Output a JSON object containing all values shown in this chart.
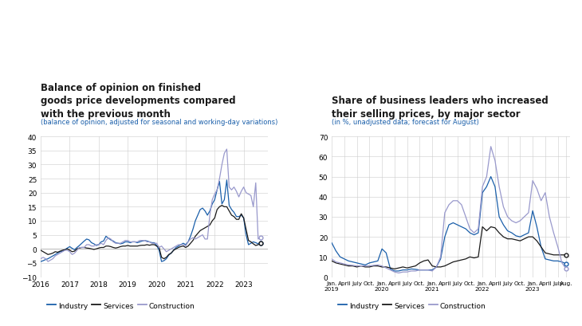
{
  "chart1": {
    "title": "Balance of opinion on finished\ngoods price developments compared\nwith the previous month",
    "subtitle": "(balance of opinion, adjusted for seasonal and working-day variations)",
    "ylim": [
      -10,
      40
    ],
    "yticks": [
      -10,
      -5,
      0,
      5,
      10,
      15,
      20,
      25,
      30,
      35,
      40
    ],
    "xlim_start": 2016.0,
    "xlim_end": 2023.83,
    "xtick_years": [
      2016,
      2017,
      2018,
      2019,
      2020,
      2021,
      2022,
      2023
    ],
    "xtick_labels": [
      "2016",
      "2017",
      "2018",
      "2019",
      "2020",
      "2021",
      "2022",
      "2023"
    ],
    "industry_color": "#1a5faa",
    "services_color": "#1a1a1a",
    "construction_color": "#9999cc",
    "industry_x": [
      2016.0,
      2016.083,
      2016.167,
      2016.25,
      2016.333,
      2016.417,
      2016.5,
      2016.583,
      2016.667,
      2016.75,
      2016.833,
      2016.917,
      2017.0,
      2017.083,
      2017.167,
      2017.25,
      2017.333,
      2017.417,
      2017.5,
      2017.583,
      2017.667,
      2017.75,
      2017.833,
      2017.917,
      2018.0,
      2018.083,
      2018.167,
      2018.25,
      2018.333,
      2018.417,
      2018.5,
      2018.583,
      2018.667,
      2018.75,
      2018.833,
      2018.917,
      2019.0,
      2019.083,
      2019.167,
      2019.25,
      2019.333,
      2019.417,
      2019.5,
      2019.583,
      2019.667,
      2019.75,
      2019.833,
      2019.917,
      2020.0,
      2020.083,
      2020.167,
      2020.25,
      2020.333,
      2020.417,
      2020.5,
      2020.583,
      2020.667,
      2020.75,
      2020.833,
      2020.917,
      2021.0,
      2021.083,
      2021.167,
      2021.25,
      2021.333,
      2021.417,
      2021.5,
      2021.583,
      2021.667,
      2021.75,
      2021.833,
      2021.917,
      2022.0,
      2022.083,
      2022.167,
      2022.25,
      2022.333,
      2022.417,
      2022.5,
      2022.583,
      2022.667,
      2022.75,
      2022.833,
      2022.917,
      2023.0,
      2023.083,
      2023.167,
      2023.25,
      2023.333,
      2023.417,
      2023.5,
      2023.583
    ],
    "industry_y": [
      -4.5,
      -4.2,
      -3.8,
      -3.5,
      -3.0,
      -2.5,
      -2.0,
      -1.5,
      -1.0,
      -0.8,
      -0.3,
      0.3,
      0.8,
      0.2,
      -0.3,
      0.5,
      1.2,
      2.0,
      2.8,
      3.5,
      3.2,
      2.2,
      1.8,
      1.2,
      1.5,
      2.5,
      2.8,
      4.5,
      3.8,
      3.2,
      2.8,
      2.2,
      2.0,
      1.8,
      2.0,
      2.5,
      2.5,
      2.2,
      2.5,
      2.5,
      2.2,
      2.5,
      2.8,
      3.0,
      2.8,
      2.5,
      2.2,
      2.2,
      1.2,
      -0.5,
      -4.5,
      -4.2,
      -3.5,
      -2.2,
      -1.5,
      -0.5,
      0.5,
      1.0,
      1.5,
      2.0,
      1.5,
      2.5,
      4.5,
      7.0,
      10.0,
      12.0,
      14.0,
      14.5,
      13.5,
      12.0,
      13.5,
      16.0,
      17.5,
      21.0,
      24.0,
      16.0,
      17.5,
      24.5,
      15.5,
      14.0,
      13.0,
      11.5,
      11.5,
      12.0,
      11.0,
      5.0,
      1.5,
      2.0,
      2.5,
      2.2,
      1.8,
      2.0
    ],
    "services_x": [
      2016.0,
      2016.083,
      2016.167,
      2016.25,
      2016.333,
      2016.417,
      2016.5,
      2016.583,
      2016.667,
      2016.75,
      2016.833,
      2016.917,
      2017.0,
      2017.083,
      2017.167,
      2017.25,
      2017.333,
      2017.417,
      2017.5,
      2017.583,
      2017.667,
      2017.75,
      2017.833,
      2017.917,
      2018.0,
      2018.083,
      2018.167,
      2018.25,
      2018.333,
      2018.417,
      2018.5,
      2018.583,
      2018.667,
      2018.75,
      2018.833,
      2018.917,
      2019.0,
      2019.083,
      2019.167,
      2019.25,
      2019.333,
      2019.417,
      2019.5,
      2019.583,
      2019.667,
      2019.75,
      2019.833,
      2019.917,
      2020.0,
      2020.083,
      2020.167,
      2020.25,
      2020.333,
      2020.417,
      2020.5,
      2020.583,
      2020.667,
      2020.75,
      2020.833,
      2020.917,
      2021.0,
      2021.083,
      2021.167,
      2021.25,
      2021.333,
      2021.417,
      2021.5,
      2021.583,
      2021.667,
      2021.75,
      2021.833,
      2021.917,
      2022.0,
      2022.083,
      2022.167,
      2022.25,
      2022.333,
      2022.417,
      2022.5,
      2022.583,
      2022.667,
      2022.75,
      2022.833,
      2022.917,
      2023.0,
      2023.083,
      2023.167,
      2023.25,
      2023.333,
      2023.417,
      2023.5,
      2023.583
    ],
    "services_y": [
      -0.5,
      -1.0,
      -1.5,
      -2.0,
      -1.8,
      -1.5,
      -1.0,
      -1.2,
      -0.8,
      -0.5,
      -0.3,
      0.0,
      -0.5,
      -1.0,
      -0.8,
      0.0,
      0.3,
      0.5,
      0.5,
      0.3,
      0.2,
      0.0,
      -0.2,
      0.0,
      0.3,
      0.5,
      0.5,
      1.0,
      1.0,
      0.8,
      0.5,
      0.3,
      0.5,
      0.8,
      1.0,
      1.0,
      1.2,
      1.0,
      1.0,
      1.0,
      1.0,
      1.2,
      1.3,
      1.3,
      1.5,
      1.3,
      1.5,
      1.5,
      1.0,
      0.5,
      -3.0,
      -3.5,
      -3.0,
      -2.0,
      -1.5,
      -0.5,
      0.0,
      0.5,
      0.8,
      1.0,
      0.5,
      1.0,
      2.0,
      3.0,
      4.5,
      5.5,
      6.5,
      7.0,
      7.5,
      8.0,
      8.5,
      10.0,
      11.0,
      14.0,
      15.0,
      15.5,
      15.0,
      15.0,
      13.5,
      12.0,
      11.5,
      10.5,
      10.5,
      12.5,
      11.0,
      7.0,
      3.0,
      2.5,
      1.8,
      1.2,
      1.5,
      2.0
    ],
    "construction_x": [
      2016.0,
      2016.083,
      2016.167,
      2016.25,
      2016.333,
      2016.417,
      2016.5,
      2016.583,
      2016.667,
      2016.75,
      2016.833,
      2016.917,
      2017.0,
      2017.083,
      2017.167,
      2017.25,
      2017.333,
      2017.417,
      2017.5,
      2017.583,
      2017.667,
      2017.75,
      2017.833,
      2017.917,
      2018.0,
      2018.083,
      2018.167,
      2018.25,
      2018.333,
      2018.417,
      2018.5,
      2018.583,
      2018.667,
      2018.75,
      2018.833,
      2018.917,
      2019.0,
      2019.083,
      2019.167,
      2019.25,
      2019.333,
      2019.417,
      2019.5,
      2019.583,
      2019.667,
      2019.75,
      2019.833,
      2019.917,
      2020.0,
      2020.083,
      2020.167,
      2020.25,
      2020.333,
      2020.417,
      2020.5,
      2020.583,
      2020.667,
      2020.75,
      2020.833,
      2020.917,
      2021.0,
      2021.083,
      2021.167,
      2021.25,
      2021.333,
      2021.417,
      2021.5,
      2021.583,
      2021.667,
      2021.75,
      2021.833,
      2021.917,
      2022.0,
      2022.083,
      2022.167,
      2022.25,
      2022.333,
      2022.417,
      2022.5,
      2022.583,
      2022.667,
      2022.75,
      2022.833,
      2022.917,
      2023.0,
      2023.083,
      2023.167,
      2023.25,
      2023.333,
      2023.417,
      2023.5,
      2023.583
    ],
    "construction_y": [
      -3.5,
      -3.0,
      -3.5,
      -4.5,
      -4.0,
      -3.5,
      -2.5,
      -2.0,
      -1.5,
      -1.0,
      -0.5,
      -0.5,
      -1.0,
      -2.0,
      -1.5,
      -0.5,
      0.5,
      0.5,
      0.5,
      1.5,
      1.5,
      1.0,
      1.0,
      1.5,
      1.5,
      2.0,
      1.5,
      3.0,
      4.0,
      3.5,
      2.5,
      2.0,
      2.0,
      2.0,
      2.5,
      3.0,
      3.0,
      2.5,
      2.5,
      2.5,
      2.5,
      3.0,
      3.0,
      3.0,
      2.5,
      2.5,
      2.0,
      2.0,
      2.0,
      0.5,
      1.0,
      0.0,
      -1.0,
      -0.5,
      0.0,
      0.5,
      1.0,
      1.5,
      1.5,
      1.5,
      1.0,
      2.5,
      3.5,
      4.0,
      3.5,
      4.0,
      4.5,
      5.0,
      3.5,
      3.5,
      12.0,
      17.5,
      19.5,
      21.0,
      25.0,
      30.0,
      34.0,
      35.5,
      22.0,
      21.0,
      22.0,
      20.5,
      18.5,
      20.5,
      22.0,
      20.0,
      19.5,
      19.0,
      15.0,
      23.5,
      3.5,
      4.0
    ]
  },
  "chart2": {
    "title": "Share of business leaders who increased\ntheir selling prices, by major sector",
    "subtitle": "(in %, unadjusted data; forecast for August)",
    "ylim": [
      0,
      70
    ],
    "yticks": [
      0,
      10,
      20,
      30,
      40,
      50,
      60,
      70
    ],
    "industry_color": "#1a5faa",
    "services_color": "#1a1a1a",
    "construction_color": "#9999cc",
    "industry_x": [
      2019.0,
      2019.083,
      2019.167,
      2019.25,
      2019.333,
      2019.417,
      2019.5,
      2019.583,
      2019.667,
      2019.75,
      2019.833,
      2019.917,
      2020.0,
      2020.083,
      2020.167,
      2020.25,
      2020.333,
      2020.417,
      2020.5,
      2020.583,
      2020.667,
      2020.75,
      2020.833,
      2020.917,
      2021.0,
      2021.083,
      2021.167,
      2021.25,
      2021.333,
      2021.417,
      2021.5,
      2021.583,
      2021.667,
      2021.75,
      2021.833,
      2021.917,
      2022.0,
      2022.083,
      2022.167,
      2022.25,
      2022.333,
      2022.417,
      2022.5,
      2022.583,
      2022.667,
      2022.75,
      2022.833,
      2022.917,
      2023.0,
      2023.083,
      2023.167,
      2023.25,
      2023.333,
      2023.417,
      2023.5,
      2023.583,
      2023.667
    ],
    "industry_y": [
      17.0,
      13.0,
      10.0,
      9.0,
      8.0,
      7.5,
      7.0,
      6.5,
      6.0,
      7.0,
      7.5,
      8.0,
      14.0,
      12.0,
      4.0,
      3.0,
      3.0,
      3.5,
      3.5,
      4.0,
      3.8,
      3.5,
      3.5,
      3.5,
      3.5,
      5.0,
      9.0,
      20.0,
      26.0,
      27.0,
      26.0,
      25.0,
      24.0,
      22.0,
      21.0,
      22.0,
      42.0,
      45.0,
      50.0,
      45.0,
      30.0,
      26.0,
      23.0,
      22.0,
      20.5,
      20.0,
      21.0,
      22.0,
      33.0,
      25.0,
      15.0,
      9.0,
      8.5,
      8.0,
      8.0,
      7.5,
      6.5
    ],
    "services_x": [
      2019.0,
      2019.083,
      2019.167,
      2019.25,
      2019.333,
      2019.417,
      2019.5,
      2019.583,
      2019.667,
      2019.75,
      2019.833,
      2019.917,
      2020.0,
      2020.083,
      2020.167,
      2020.25,
      2020.333,
      2020.417,
      2020.5,
      2020.583,
      2020.667,
      2020.75,
      2020.833,
      2020.917,
      2021.0,
      2021.083,
      2021.167,
      2021.25,
      2021.333,
      2021.417,
      2021.5,
      2021.583,
      2021.667,
      2021.75,
      2021.833,
      2021.917,
      2022.0,
      2022.083,
      2022.167,
      2022.25,
      2022.333,
      2022.417,
      2022.5,
      2022.583,
      2022.667,
      2022.75,
      2022.833,
      2022.917,
      2023.0,
      2023.083,
      2023.167,
      2023.25,
      2023.333,
      2023.417,
      2023.5,
      2023.583,
      2023.667
    ],
    "services_y": [
      8.0,
      7.0,
      6.5,
      6.0,
      5.5,
      5.5,
      5.0,
      5.5,
      5.0,
      5.0,
      5.5,
      5.5,
      5.0,
      5.0,
      4.5,
      4.0,
      4.5,
      5.0,
      4.5,
      5.0,
      5.5,
      7.0,
      8.0,
      8.5,
      5.5,
      5.0,
      5.0,
      5.5,
      6.5,
      7.5,
      8.0,
      8.5,
      9.0,
      10.0,
      9.5,
      10.0,
      25.0,
      23.0,
      25.0,
      24.5,
      22.0,
      20.0,
      19.0,
      19.0,
      18.5,
      18.0,
      19.0,
      20.0,
      20.0,
      18.0,
      15.0,
      12.0,
      11.5,
      11.0,
      11.0,
      11.0,
      11.0
    ],
    "construction_x": [
      2019.0,
      2019.083,
      2019.167,
      2019.25,
      2019.333,
      2019.417,
      2019.5,
      2019.583,
      2019.667,
      2019.75,
      2019.833,
      2019.917,
      2020.0,
      2020.083,
      2020.167,
      2020.25,
      2020.333,
      2020.417,
      2020.5,
      2020.583,
      2020.667,
      2020.75,
      2020.833,
      2020.917,
      2021.0,
      2021.083,
      2021.167,
      2021.25,
      2021.333,
      2021.417,
      2021.5,
      2021.583,
      2021.667,
      2021.75,
      2021.833,
      2021.917,
      2022.0,
      2022.083,
      2022.167,
      2022.25,
      2022.333,
      2022.417,
      2022.5,
      2022.583,
      2022.667,
      2022.75,
      2022.833,
      2022.917,
      2023.0,
      2023.083,
      2023.167,
      2023.25,
      2023.333,
      2023.417,
      2023.5,
      2023.583,
      2023.667
    ],
    "construction_y": [
      9.0,
      7.5,
      7.0,
      6.5,
      6.0,
      5.8,
      5.5,
      5.5,
      5.5,
      5.5,
      5.8,
      6.0,
      5.5,
      4.5,
      3.5,
      2.5,
      2.0,
      2.5,
      2.5,
      3.0,
      3.0,
      3.5,
      3.5,
      3.5,
      3.0,
      5.0,
      10.0,
      32.0,
      36.0,
      38.0,
      38.0,
      36.0,
      30.0,
      24.0,
      22.0,
      24.0,
      45.0,
      50.0,
      65.0,
      58.0,
      45.0,
      35.0,
      30.0,
      28.0,
      27.0,
      28.0,
      30.0,
      32.0,
      48.0,
      44.0,
      38.0,
      42.0,
      30.0,
      22.0,
      15.0,
      7.0,
      4.0
    ],
    "xtick_positions": [
      2019.0,
      2019.25,
      2019.5,
      2019.75,
      2020.0,
      2020.25,
      2020.5,
      2020.75,
      2021.0,
      2021.25,
      2021.5,
      2021.75,
      2022.0,
      2022.25,
      2022.5,
      2022.75,
      2023.0,
      2023.25,
      2023.5,
      2023.667
    ],
    "xtick_labels": [
      "Jan.\n2019",
      "April",
      "July",
      "Oct.",
      "Jan.\n2020",
      "April",
      "July",
      "Oct.",
      "Jan.\n2021",
      "April",
      "July",
      "Oct.",
      "Jan.\n2022",
      "April",
      "July",
      "Oct.",
      "Jan.\n2023",
      "April",
      "July",
      "Aug."
    ]
  },
  "legend": {
    "industry_label": "Industry",
    "services_label": "Services",
    "construction_label": "Construction"
  },
  "colors": {
    "title": "#1a1a1a",
    "subtitle": "#1a5faa",
    "grid": "#cccccc",
    "background": "#ffffff"
  }
}
